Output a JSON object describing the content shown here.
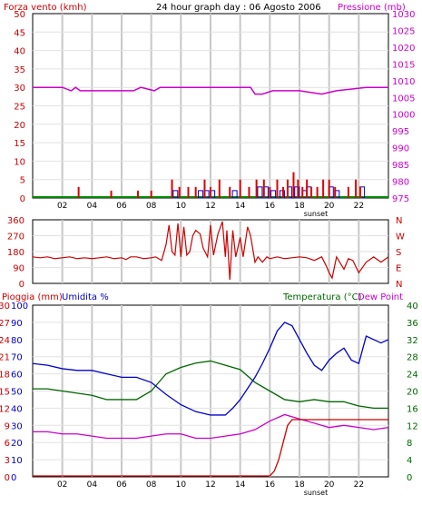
{
  "chart_data": [
    {
      "type": "bar",
      "title": "24 hour graph day : 06 Agosto 2006",
      "ylabel_left": "Forza vento (kmh)",
      "ylabel_right": "Pressione (mb)",
      "x_ticks": [
        "02",
        "04",
        "06",
        "08",
        "10",
        "12",
        "14",
        "16",
        "18",
        "20",
        "22"
      ],
      "sunset_label": "sunset",
      "y_left_ticks": [
        0,
        5,
        10,
        15,
        20,
        25,
        30,
        35,
        40,
        45,
        50
      ],
      "y_right_ticks": [
        975,
        980,
        985,
        990,
        995,
        1000,
        1005,
        1010,
        1015,
        1020,
        1025,
        1030
      ],
      "ylim_left": [
        0,
        50
      ],
      "ylim_right": [
        975,
        1030
      ],
      "grid": true,
      "colors": {
        "wind_gust": "#dd0000",
        "wind_avg": "#0000cc",
        "wind_mean_line": "#008800",
        "pressure": "#cc00cc",
        "left_axis": "#cc0000",
        "right_axis": "#cc00cc"
      },
      "series": [
        {
          "name": "Pressione (mb)",
          "x": [
            0,
            0.3,
            2.0,
            2.6,
            2.9,
            3.2,
            3.5,
            4.5,
            6.8,
            7.3,
            8.2,
            8.6,
            9.0,
            12.5,
            14.7,
            15.0,
            15.5,
            16.2,
            18.0,
            19.5,
            20.5,
            22.5,
            24
          ],
          "values": [
            1008,
            1008,
            1008,
            1007,
            1008,
            1007,
            1007,
            1007,
            1007,
            1008,
            1007,
            1008,
            1008,
            1008,
            1008,
            1006,
            1006,
            1007,
            1007,
            1006,
            1007,
            1008,
            1008
          ]
        }
      ],
      "wind_gust": [
        [
          3.1,
          3
        ],
        [
          5.3,
          2
        ],
        [
          7.1,
          2
        ],
        [
          8.0,
          2
        ],
        [
          9.4,
          5
        ],
        [
          9.9,
          3
        ],
        [
          10.5,
          3
        ],
        [
          11.0,
          3
        ],
        [
          11.6,
          5
        ],
        [
          12.0,
          3
        ],
        [
          12.6,
          5
        ],
        [
          13.3,
          3
        ],
        [
          14.0,
          5
        ],
        [
          14.6,
          3
        ],
        [
          15.1,
          5
        ],
        [
          15.6,
          5
        ],
        [
          16.0,
          3
        ],
        [
          16.5,
          5
        ],
        [
          16.9,
          3
        ],
        [
          17.2,
          5
        ],
        [
          17.6,
          7
        ],
        [
          17.9,
          5
        ],
        [
          18.2,
          3
        ],
        [
          18.5,
          5
        ],
        [
          18.8,
          3
        ],
        [
          19.2,
          3
        ],
        [
          19.6,
          5
        ],
        [
          20.0,
          5
        ],
        [
          20.4,
          3
        ],
        [
          21.3,
          3
        ],
        [
          21.8,
          5
        ],
        [
          22.1,
          3
        ]
      ],
      "wind_avg": [
        [
          9.6,
          2
        ],
        [
          11.3,
          2
        ],
        [
          11.7,
          2
        ],
        [
          12.1,
          2
        ],
        [
          13.6,
          2
        ],
        [
          15.3,
          3
        ],
        [
          15.7,
          3
        ],
        [
          16.2,
          2
        ],
        [
          16.8,
          2
        ],
        [
          17.3,
          3
        ],
        [
          17.8,
          3
        ],
        [
          18.3,
          2
        ],
        [
          18.6,
          3
        ],
        [
          20.1,
          3
        ],
        [
          20.5,
          2
        ],
        [
          22.2,
          3
        ]
      ]
    },
    {
      "type": "line",
      "ylabel_right": "N W S E N",
      "right_labels": [
        "N",
        "W",
        "S",
        "E",
        "N"
      ],
      "y_left_ticks": [
        0,
        90,
        180,
        270,
        360
      ],
      "ylim": [
        0,
        360
      ],
      "colors": {
        "direction": "#cc0000"
      },
      "series": [
        {
          "name": "",
          "x": [
            0,
            0.5,
            1.0,
            1.5,
            2.0,
            2.5,
            3.0,
            3.5,
            4.0,
            4.5,
            5.0,
            5.5,
            6.0,
            6.3,
            6.6,
            7.0,
            7.5,
            8.0,
            8.3,
            8.7,
            9.0,
            9.2,
            9.4,
            9.6,
            9.8,
            10.0,
            10.2,
            10.4,
            10.6,
            10.8,
            11.0,
            11.3,
            11.5,
            11.8,
            12.0,
            12.2,
            12.5,
            12.8,
            13.0,
            13.1,
            13.3,
            13.5,
            13.7,
            14.0,
            14.2,
            14.5,
            14.7,
            15.0,
            15.2,
            15.5,
            15.8,
            16.0,
            16.5,
            17.0,
            17.5,
            18.0,
            18.5,
            19.0,
            19.5,
            19.8,
            20.0,
            20.2,
            20.5,
            21.0,
            21.3,
            21.6,
            22.0,
            22.5,
            23.0,
            23.5,
            24
          ],
          "values": [
            150,
            145,
            150,
            140,
            145,
            150,
            140,
            145,
            140,
            145,
            150,
            140,
            145,
            135,
            150,
            150,
            140,
            145,
            150,
            130,
            220,
            330,
            180,
            160,
            340,
            150,
            320,
            160,
            180,
            270,
            300,
            280,
            200,
            150,
            330,
            160,
            280,
            350,
            150,
            300,
            20,
            300,
            150,
            260,
            150,
            320,
            270,
            120,
            150,
            120,
            150,
            140,
            150,
            140,
            145,
            150,
            145,
            130,
            150,
            100,
            60,
            30,
            150,
            80,
            140,
            130,
            60,
            120,
            150,
            120,
            150
          ]
        }
      ]
    },
    {
      "type": "line",
      "ylabel_left_1": "Pioggia (mm)",
      "ylabel_left_2": "Umidita %",
      "ylabel_right_1": "Temperatura (°C)",
      "ylabel_right_2": "Dew Point",
      "rain_ticks": [
        0,
        3,
        6,
        9,
        12,
        15,
        18,
        21,
        24,
        27,
        30
      ],
      "humidity_ticks": [
        0,
        10,
        20,
        30,
        40,
        50,
        60,
        70,
        80,
        90,
        100
      ],
      "temp_ticks": [
        0,
        4,
        8,
        12,
        16,
        20,
        24,
        28,
        32,
        36,
        40
      ],
      "ylim_temp": [
        0,
        40
      ],
      "x_ticks": [
        "02",
        "04",
        "06",
        "08",
        "10",
        "12",
        "14",
        "16",
        "18",
        "20",
        "22"
      ],
      "sunset_label": "sunset",
      "colors": {
        "temperature": "#006600",
        "humidity": "#0000cc",
        "dew_point": "#cc00cc",
        "rain": "#cc0000",
        "rain_axis": "#cc0000",
        "humidity_axis": "#0000cc",
        "temp_axis": "#006600",
        "dew_axis": "#cc00cc"
      },
      "series": [
        {
          "name": "Temperatura (°C)",
          "x": [
            0,
            1,
            2,
            3,
            4,
            5,
            6,
            7,
            8,
            9,
            10,
            11,
            12,
            13,
            14,
            15,
            16,
            17,
            18,
            19,
            20,
            21,
            22,
            23,
            24
          ],
          "values": [
            20.5,
            20.5,
            20.0,
            19.5,
            19.0,
            18.0,
            18.0,
            18.0,
            20.0,
            24.0,
            25.5,
            26.5,
            27.0,
            26.0,
            25.0,
            22.0,
            20.0,
            18.0,
            17.5,
            18.0,
            17.5,
            17.5,
            16.5,
            16.0,
            16.0
          ]
        },
        {
          "name": "Umidita %",
          "x": [
            0,
            1,
            2,
            3,
            4,
            5,
            6,
            7,
            8,
            9,
            10,
            11,
            12,
            13,
            13.5,
            14,
            15,
            15.5,
            16,
            16.5,
            17,
            17.5,
            18,
            18.5,
            19,
            19.5,
            20,
            20.5,
            21,
            21.5,
            22,
            22.5,
            23,
            23.5,
            24
          ],
          "values": [
            66,
            65,
            63,
            62,
            62,
            60,
            58,
            58,
            55,
            48,
            42,
            38,
            36,
            36,
            40,
            45,
            58,
            66,
            75,
            85,
            90,
            88,
            80,
            72,
            65,
            62,
            68,
            72,
            75,
            68,
            66,
            82,
            80,
            78,
            80
          ]
        },
        {
          "name": "Dew Point",
          "x": [
            0,
            1,
            2,
            3,
            4,
            5,
            6,
            7,
            8,
            9,
            10,
            11,
            12,
            13,
            14,
            15,
            16,
            17,
            18,
            19,
            20,
            21,
            22,
            23,
            24
          ],
          "values": [
            10.5,
            10.5,
            10.0,
            10.0,
            9.5,
            9.0,
            9.0,
            9.0,
            9.5,
            10.0,
            10.0,
            9.0,
            9.0,
            9.5,
            10.0,
            11.0,
            13.0,
            14.5,
            13.5,
            12.5,
            11.5,
            12.0,
            11.5,
            11.0,
            11.5
          ]
        },
        {
          "name": "Pioggia (mm)",
          "x": [
            0,
            16.0,
            16.3,
            16.6,
            16.9,
            17.2,
            17.5,
            24
          ],
          "values": [
            0,
            0,
            1,
            3,
            6,
            9,
            10,
            10
          ]
        }
      ]
    }
  ]
}
